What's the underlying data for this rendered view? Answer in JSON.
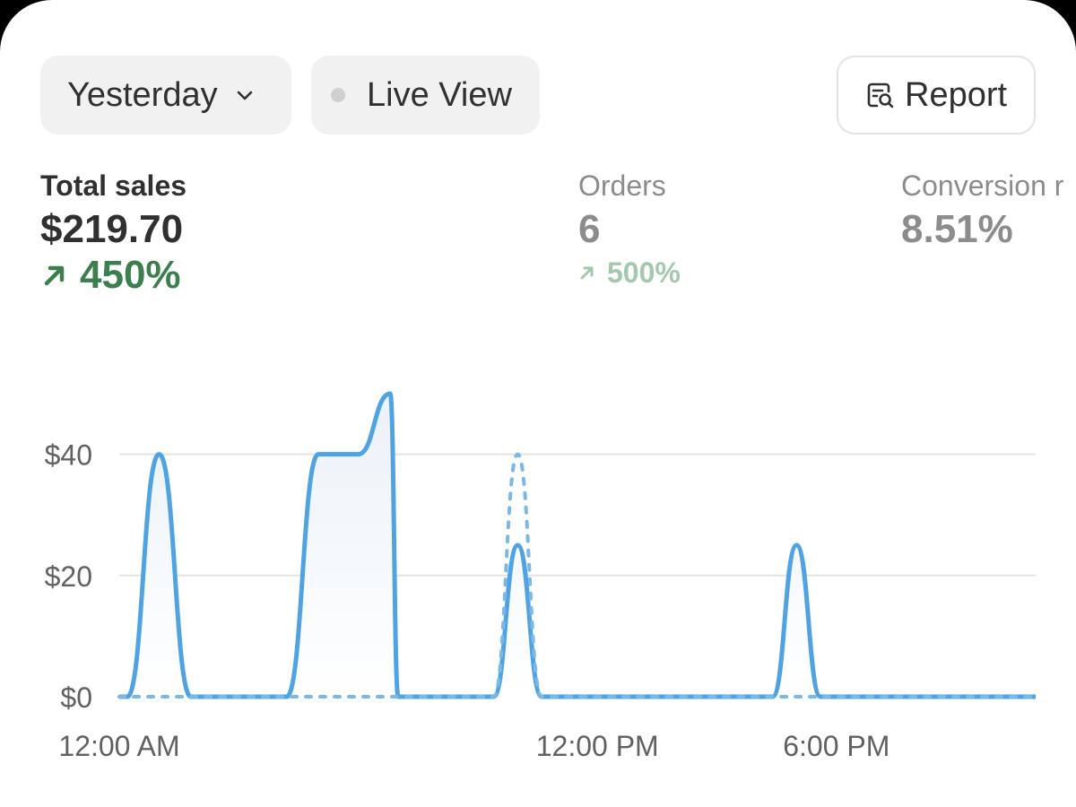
{
  "filters": {
    "date_label": "Yesterday",
    "live_view_label": "Live View",
    "report_label": "Report"
  },
  "metrics": [
    {
      "label": "Total sales",
      "value": "$219.70",
      "change": "450%"
    },
    {
      "label": "Orders",
      "value": "6",
      "change": "500%"
    },
    {
      "label": "Conversion r",
      "value": "8.51%"
    }
  ],
  "colors": {
    "series": "#4fa3e3",
    "positive": "#3b7f4c",
    "positive_muted": "#a3c9ad",
    "muted_text": "#8c8c8c"
  },
  "chart_data": {
    "type": "area",
    "y_ticks": [
      "$0",
      "$20",
      "$40"
    ],
    "y_tick_values": [
      0,
      20,
      40
    ],
    "x_tick_labels": [
      "12:00 AM",
      "12:00 PM",
      "6:00 PM"
    ],
    "x_tick_hours": [
      0,
      12,
      18
    ],
    "xlim": [
      0,
      23
    ],
    "ylim": [
      0,
      50
    ],
    "grid": true,
    "series": [
      {
        "style": "solid",
        "x": [
          0,
          0.2,
          1,
          1.8,
          2,
          4,
          4.2,
          5,
          6,
          6.8,
          7,
          8,
          9,
          9.4,
          10,
          10.6,
          11,
          16,
          16.4,
          17,
          17.6,
          18,
          23
        ],
        "y": [
          0,
          0,
          40,
          0,
          0,
          0,
          0,
          40,
          40,
          50,
          0,
          0,
          0,
          0,
          25,
          0,
          0,
          0,
          0,
          25,
          0,
          0,
          0
        ]
      },
      {
        "style": "dashed",
        "x": [
          0,
          9,
          9.4,
          10,
          10.6,
          11,
          23
        ],
        "y": [
          0,
          0,
          0,
          40,
          0,
          0,
          0
        ]
      }
    ]
  }
}
